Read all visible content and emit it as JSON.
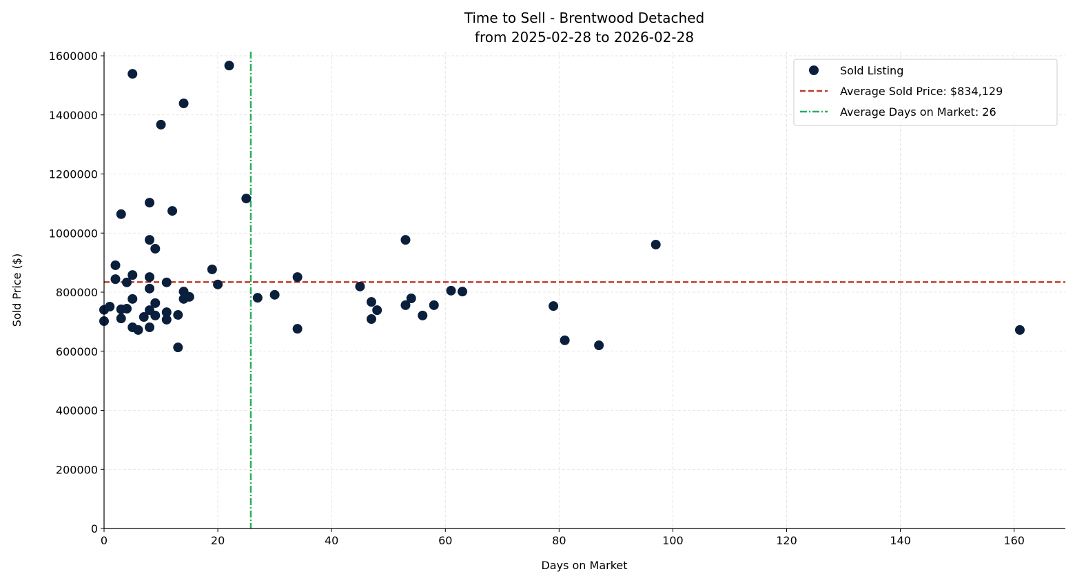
{
  "chart_data": {
    "type": "scatter",
    "title": "Time to Sell - Brentwood Detached",
    "subtitle": "from 2025-02-28 to 2026-02-28",
    "xlabel": "Days on Market",
    "ylabel": "Sold Price ($)",
    "xlim": [
      0,
      169
    ],
    "ylim": [
      0,
      1614000
    ],
    "xticks": [
      0,
      20,
      40,
      60,
      80,
      100,
      120,
      140,
      160
    ],
    "yticks": [
      0,
      200000,
      400000,
      600000,
      800000,
      1000000,
      1200000,
      1400000,
      1600000
    ],
    "grid": true,
    "legend_position": "top-right",
    "colors": {
      "points": "#0a1f3c",
      "avg_price": "#c0392b",
      "avg_days": "#27ae60"
    },
    "series": [
      {
        "name": "Sold Listing",
        "points": [
          [
            0,
            702000
          ],
          [
            0,
            740000
          ],
          [
            1,
            751000
          ],
          [
            2,
            891000
          ],
          [
            2,
            844000
          ],
          [
            3,
            1064000
          ],
          [
            3,
            742000
          ],
          [
            3,
            711000
          ],
          [
            4,
            833000
          ],
          [
            4,
            744000
          ],
          [
            5,
            1539000
          ],
          [
            5,
            858000
          ],
          [
            5,
            777000
          ],
          [
            5,
            681000
          ],
          [
            6,
            672000
          ],
          [
            7,
            716000
          ],
          [
            8,
            1103000
          ],
          [
            8,
            977000
          ],
          [
            8,
            851000
          ],
          [
            8,
            812000
          ],
          [
            8,
            739000
          ],
          [
            8,
            681000
          ],
          [
            9,
            947000
          ],
          [
            9,
            763000
          ],
          [
            9,
            721000
          ],
          [
            10,
            1367000
          ],
          [
            11,
            833000
          ],
          [
            11,
            732000
          ],
          [
            11,
            707000
          ],
          [
            12,
            1075000
          ],
          [
            13,
            723000
          ],
          [
            13,
            613000
          ],
          [
            14,
            1439000
          ],
          [
            14,
            802000
          ],
          [
            14,
            777000
          ],
          [
            15,
            784000
          ],
          [
            19,
            877000
          ],
          [
            20,
            826000
          ],
          [
            22,
            1567000
          ],
          [
            25,
            1117000
          ],
          [
            27,
            781000
          ],
          [
            30,
            791000
          ],
          [
            34,
            851000
          ],
          [
            34,
            676000
          ],
          [
            45,
            819000
          ],
          [
            47,
            767000
          ],
          [
            47,
            709000
          ],
          [
            48,
            739000
          ],
          [
            53,
            977000
          ],
          [
            53,
            756000
          ],
          [
            54,
            779000
          ],
          [
            56,
            721000
          ],
          [
            58,
            756000
          ],
          [
            61,
            805000
          ],
          [
            63,
            802000
          ],
          [
            79,
            753000
          ],
          [
            81,
            637000
          ],
          [
            87,
            620000
          ],
          [
            97,
            961000
          ],
          [
            161,
            672000
          ]
        ]
      }
    ],
    "reference_lines": {
      "avg_price": {
        "label": "Average Sold Price: $834,129",
        "value": 834129
      },
      "avg_days": {
        "label": "Average Days on Market: 26",
        "value": 25.8
      }
    }
  }
}
